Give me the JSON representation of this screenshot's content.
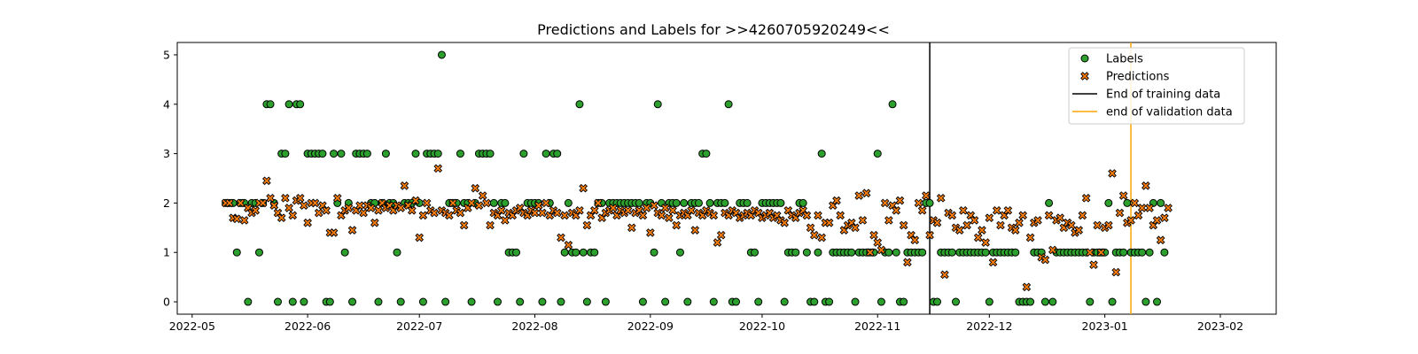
{
  "chart_data": {
    "type": "scatter",
    "title": "Predictions and Labels for >>4260705920249<<",
    "xlabel": "",
    "ylabel": "",
    "xlim": [
      "2022-04-27",
      "2023-02-16"
    ],
    "ylim": [
      -0.25,
      5.25
    ],
    "x_ticks": [
      "2022-05",
      "2022-06",
      "2022-07",
      "2022-08",
      "2022-09",
      "2022-10",
      "2022-11",
      "2022-12",
      "2023-01",
      "2023-02"
    ],
    "y_ticks": [
      0,
      1,
      2,
      3,
      4,
      5
    ],
    "grid": false,
    "legend_position": "upper right",
    "colors": {
      "labels_fill": "#2ca02c",
      "predictions_fill": "#ff7f0e",
      "marker_edge": "#000000",
      "training_line": "#000000",
      "validation_line": "#ffa500"
    },
    "vlines": [
      {
        "name": "End of training data",
        "x": "2022-11-15",
        "color": "#000000"
      },
      {
        "name": "end of validation data",
        "x": "2023-01-08",
        "color": "#ffa500"
      }
    ],
    "legend": [
      {
        "label": "Labels",
        "marker": "circle",
        "color": "#2ca02c"
      },
      {
        "label": "Predictions",
        "marker": "x",
        "color": "#ff7f0e"
      },
      {
        "label": "End of training data",
        "marker": "line",
        "color": "#000000"
      },
      {
        "label": "end of validation data",
        "marker": "line",
        "color": "#ffa500"
      }
    ],
    "series": [
      {
        "name": "Labels",
        "marker": "circle",
        "start": "2022-05-10",
        "values": [
          2,
          2,
          2,
          1,
          2,
          2,
          0,
          2,
          2,
          1,
          2,
          4,
          4,
          2,
          0,
          3,
          3,
          4,
          0,
          4,
          4,
          0,
          3,
          3,
          3,
          3,
          3,
          0,
          0,
          3,
          2,
          3,
          1,
          2,
          0,
          3,
          3,
          3,
          3,
          2,
          2,
          0,
          2,
          3,
          2,
          2,
          1,
          0,
          2,
          2,
          2,
          3,
          2,
          0,
          3,
          3,
          3,
          3,
          5,
          0,
          2,
          2,
          2,
          3,
          2,
          2,
          0,
          2,
          3,
          3,
          3,
          3,
          2,
          0,
          2,
          2,
          1,
          1,
          1,
          0,
          3,
          2,
          2,
          2,
          2,
          0,
          3,
          2,
          3,
          3,
          0,
          1,
          2,
          1,
          1,
          4,
          1,
          0,
          1,
          1,
          2,
          2,
          0,
          2,
          2,
          2,
          2,
          2,
          2,
          2,
          2,
          2,
          0,
          2,
          2,
          1,
          4,
          2,
          0,
          2,
          2,
          2,
          1,
          2,
          0,
          2,
          2,
          2,
          3,
          3,
          2,
          0,
          2,
          2,
          2,
          4,
          0,
          0,
          2,
          2,
          2,
          1,
          1,
          0,
          2,
          2,
          2,
          2,
          2,
          2,
          0,
          1,
          1,
          1,
          2,
          2,
          1,
          0,
          0,
          1,
          3,
          0,
          0,
          1,
          1,
          1,
          1,
          1,
          1,
          0,
          1,
          1,
          1,
          1,
          1,
          3,
          0,
          1,
          1,
          4,
          1,
          0,
          0,
          1,
          1,
          1,
          1,
          1,
          2,
          2,
          0,
          0,
          1,
          1,
          1,
          1,
          0,
          1,
          1,
          1,
          1,
          1,
          1,
          1,
          1,
          0,
          1,
          1,
          1,
          1,
          1,
          1,
          1,
          0,
          0,
          0,
          0,
          1,
          1,
          1,
          0,
          2,
          0,
          1,
          1,
          1,
          1,
          1,
          1,
          1,
          1,
          1,
          0,
          1,
          1,
          1,
          1,
          2,
          0,
          1,
          1,
          1,
          2,
          1,
          1,
          1,
          1,
          0,
          1,
          2,
          0,
          2,
          1
        ]
      },
      {
        "name": "Predictions",
        "marker": "x",
        "start": "2022-05-10",
        "values": [
          2.0,
          2.0,
          1.7,
          1.68,
          2.0,
          1.65,
          1.9,
          1.8,
          1.85,
          2.0,
          2.0,
          2.45,
          2.1,
          1.95,
          1.8,
          1.7,
          2.1,
          1.9,
          1.75,
          2.05,
          2.1,
          1.95,
          1.6,
          2.0,
          2.0,
          1.8,
          1.95,
          1.85,
          1.4,
          1.4,
          2.1,
          1.75,
          1.85,
          1.9,
          1.45,
          1.85,
          1.95,
          1.8,
          1.95,
          1.9,
          1.6,
          1.85,
          2.0,
          1.9,
          1.95,
          1.85,
          1.95,
          1.9,
          2.35,
          1.95,
          1.85,
          2.05,
          1.3,
          1.75,
          2.0,
          1.85,
          1.8,
          2.7,
          1.85,
          1.8,
          1.75,
          2.0,
          1.85,
          1.8,
          1.55,
          1.9,
          2.0,
          2.3,
          1.95,
          2.15,
          2.0,
          1.55,
          1.8,
          1.75,
          1.85,
          1.65,
          1.8,
          1.75,
          1.85,
          1.9,
          1.8,
          1.75,
          1.85,
          1.8,
          1.95,
          1.8,
          2.0,
          1.75,
          1.85,
          1.8,
          1.3,
          1.75,
          1.15,
          1.8,
          1.75,
          1.85,
          2.3,
          1.55,
          1.75,
          1.85,
          2.0,
          1.7,
          1.8,
          1.85,
          1.9,
          1.75,
          1.85,
          1.8,
          1.85,
          1.5,
          1.8,
          1.85,
          1.75,
          1.9,
          1.4,
          1.95,
          1.8,
          1.75,
          1.9,
          1.7,
          1.85,
          1.55,
          1.75,
          1.8,
          1.75,
          1.85,
          1.45,
          1.8,
          1.75,
          1.85,
          1.8,
          1.75,
          1.2,
          1.35,
          1.8,
          1.75,
          1.85,
          1.8,
          1.7,
          1.75,
          1.8,
          1.75,
          1.85,
          1.8,
          1.7,
          1.75,
          1.8,
          1.7,
          1.75,
          1.65,
          1.6,
          1.85,
          1.75,
          1.7,
          1.8,
          1.85,
          1.75,
          1.5,
          1.35,
          1.75,
          1.3,
          1.6,
          1.6,
          1.95,
          2.05,
          1.75,
          1.45,
          1.55,
          1.6,
          1.5,
          2.15,
          1.65,
          2.2,
          1.0,
          1.35,
          1.2,
          1.05,
          2.0,
          1.65,
          1.95,
          1.85,
          2.05,
          1.55,
          0.8,
          1.35,
          1.25,
          2.0,
          1.85,
          2.15,
          1.35,
          1.65,
          1.6,
          2.1,
          0.55,
          1.8,
          1.75,
          1.5,
          1.45,
          1.85,
          1.55,
          1.75,
          1.65,
          1.3,
          1.45,
          1.2,
          1.7,
          0.8,
          1.85,
          1.55,
          1.75,
          1.85,
          1.5,
          1.45,
          1.6,
          1.75,
          0.3,
          1.3,
          1.6,
          1.65,
          0.9,
          0.85,
          1.75,
          1.05,
          1.65,
          1.7,
          1.5,
          1.6,
          1.55,
          1.4,
          1.45,
          1.75,
          2.1,
          1.0,
          0.75,
          1.55,
          1.0,
          1.5,
          1.55,
          2.6,
          0.6,
          1.8,
          2.15,
          1.6,
          1.65,
          2.0,
          1.75,
          1.9,
          2.35,
          1.9,
          1.55,
          1.65,
          1.25,
          1.7,
          1.9
        ]
      }
    ]
  }
}
